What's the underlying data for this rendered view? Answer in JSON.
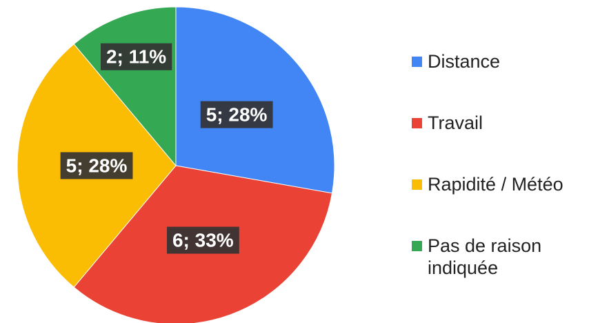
{
  "chart_data": {
    "type": "pie",
    "categories": [
      "Distance",
      "Travail",
      "Rapidité / Météo",
      "Pas de raison indiquée"
    ],
    "values": [
      5,
      6,
      5,
      2
    ],
    "value_labels": [
      "5; 28%",
      "6; 33%",
      "5; 28%",
      "2; 11%"
    ],
    "colors": [
      "#4285f4",
      "#ea4335",
      "#fbbc04",
      "#34a853"
    ],
    "legend": "right"
  }
}
